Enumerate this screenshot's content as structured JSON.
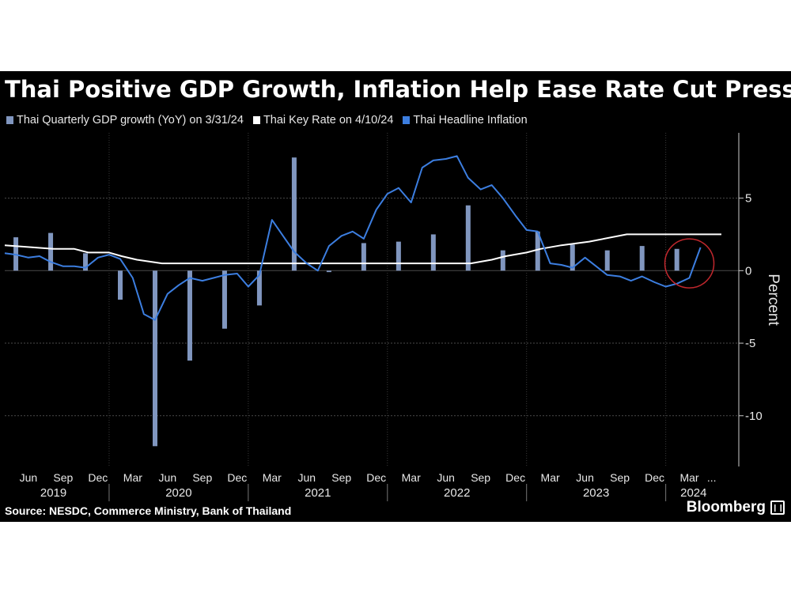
{
  "chart_data": {
    "type": "bar",
    "title": "Thai Positive GDP Growth, Inflation Help Ease Rate Cut Pressure",
    "ylabel": "Percent",
    "ylim": [
      -13.5,
      9.5
    ],
    "yticks": [
      5,
      0,
      -5,
      -10
    ],
    "xlim": [
      2019.25,
      2024.4
    ],
    "grid": true,
    "legend_position": "top",
    "legend": [
      "Thai Quarterly GDP growth (YoY) on 3/31/24",
      "Thai Key Rate on 4/10/24",
      "Thai Headline Inflation"
    ],
    "colors": {
      "bars": "#8096bf",
      "key_rate": "#ffffff",
      "inflation": "#3c7ee0",
      "highlight": "#c0272d",
      "grid": "#4a4a4a"
    },
    "series": [
      {
        "name": "Thai Quarterly GDP growth (YoY) on 3/31/24",
        "type": "bar",
        "x": [
          2019.33,
          2019.58,
          2019.83,
          2020.08,
          2020.33,
          2020.58,
          2020.83,
          2021.08,
          2021.33,
          2021.58,
          2021.83,
          2022.08,
          2022.33,
          2022.58,
          2022.83,
          2023.08,
          2023.33,
          2023.58,
          2023.83,
          2024.08
        ],
        "values": [
          2.3,
          2.6,
          1.2,
          -2.0,
          -12.1,
          -6.2,
          -4.0,
          -2.4,
          7.8,
          -0.1,
          1.9,
          2.0,
          2.5,
          4.5,
          1.4,
          2.7,
          1.8,
          1.4,
          1.7,
          1.5
        ]
      },
      {
        "name": "Thai Key Rate on 4/10/24",
        "type": "line",
        "x": [
          2019.25,
          2019.6,
          2019.75,
          2019.85,
          2020.0,
          2020.09,
          2020.2,
          2020.38,
          2021.0,
          2022.0,
          2022.6,
          2022.75,
          2022.85,
          2023.0,
          2023.1,
          2023.25,
          2023.45,
          2023.72,
          2024.4
        ],
        "values": [
          1.75,
          1.5,
          1.5,
          1.25,
          1.25,
          1.0,
          0.75,
          0.5,
          0.5,
          0.5,
          0.5,
          0.75,
          1.0,
          1.25,
          1.5,
          1.75,
          2.0,
          2.5,
          2.5
        ]
      },
      {
        "name": "Thai Headline Inflation",
        "type": "line",
        "x": [
          2019.25,
          2019.33,
          2019.42,
          2019.5,
          2019.58,
          2019.67,
          2019.75,
          2019.83,
          2019.92,
          2020.0,
          2020.08,
          2020.17,
          2020.25,
          2020.33,
          2020.42,
          2020.5,
          2020.58,
          2020.67,
          2020.75,
          2020.83,
          2020.92,
          2021.0,
          2021.08,
          2021.17,
          2021.25,
          2021.33,
          2021.42,
          2021.5,
          2021.58,
          2021.67,
          2021.75,
          2021.83,
          2021.92,
          2022.0,
          2022.08,
          2022.17,
          2022.25,
          2022.33,
          2022.42,
          2022.5,
          2022.58,
          2022.67,
          2022.75,
          2022.83,
          2022.92,
          2023.0,
          2023.08,
          2023.17,
          2023.25,
          2023.33,
          2023.42,
          2023.5,
          2023.58,
          2023.67,
          2023.75,
          2023.83,
          2023.92,
          2024.0,
          2024.08,
          2024.17,
          2024.25
        ],
        "values": [
          1.2,
          1.1,
          0.9,
          1.0,
          0.6,
          0.3,
          0.3,
          0.2,
          0.9,
          1.1,
          0.8,
          -0.5,
          -3.0,
          -3.4,
          -1.6,
          -1.0,
          -0.5,
          -0.7,
          -0.5,
          -0.3,
          -0.2,
          -1.1,
          -0.3,
          3.5,
          2.4,
          1.3,
          0.5,
          0.0,
          1.7,
          2.4,
          2.7,
          2.2,
          4.2,
          5.3,
          5.7,
          4.7,
          7.1,
          7.6,
          7.7,
          7.9,
          6.4,
          5.6,
          5.9,
          5.0,
          3.8,
          2.8,
          2.7,
          0.5,
          0.4,
          0.2,
          0.9,
          0.3,
          -0.3,
          -0.4,
          -0.7,
          -0.4,
          -0.8,
          -1.1,
          -0.9,
          -0.5,
          1.6
        ]
      }
    ],
    "x_month_labels": [
      {
        "x": 2019.42,
        "label": "Jun"
      },
      {
        "x": 2019.67,
        "label": "Sep"
      },
      {
        "x": 2019.92,
        "label": "Dec"
      },
      {
        "x": 2020.17,
        "label": "Mar"
      },
      {
        "x": 2020.42,
        "label": "Jun"
      },
      {
        "x": 2020.67,
        "label": "Sep"
      },
      {
        "x": 2020.92,
        "label": "Dec"
      },
      {
        "x": 2021.17,
        "label": "Mar"
      },
      {
        "x": 2021.42,
        "label": "Jun"
      },
      {
        "x": 2021.67,
        "label": "Sep"
      },
      {
        "x": 2021.92,
        "label": "Dec"
      },
      {
        "x": 2022.17,
        "label": "Mar"
      },
      {
        "x": 2022.42,
        "label": "Jun"
      },
      {
        "x": 2022.67,
        "label": "Sep"
      },
      {
        "x": 2022.92,
        "label": "Dec"
      },
      {
        "x": 2023.17,
        "label": "Mar"
      },
      {
        "x": 2023.42,
        "label": "Jun"
      },
      {
        "x": 2023.67,
        "label": "Sep"
      },
      {
        "x": 2023.92,
        "label": "Dec"
      },
      {
        "x": 2024.17,
        "label": "Mar"
      },
      {
        "x": 2024.33,
        "label": "..."
      }
    ],
    "x_year_labels": [
      {
        "x": 2019.6,
        "label": "2019"
      },
      {
        "x": 2020.5,
        "label": "2020"
      },
      {
        "x": 2021.5,
        "label": "2021"
      },
      {
        "x": 2022.5,
        "label": "2022"
      },
      {
        "x": 2023.5,
        "label": "2023"
      },
      {
        "x": 2024.2,
        "label": "2024"
      }
    ],
    "year_boundaries": [
      2020.0,
      2021.0,
      2022.0,
      2023.0,
      2024.0
    ],
    "annotation": {
      "type": "circle",
      "x": 2024.17,
      "y": 0.5,
      "note": "highlight latest readings"
    }
  },
  "footer": {
    "source": "Source: NESDC, Commerce Ministry, Bank of Thailand",
    "brand": "Bloomberg",
    "brand_mark": "❙❙"
  }
}
